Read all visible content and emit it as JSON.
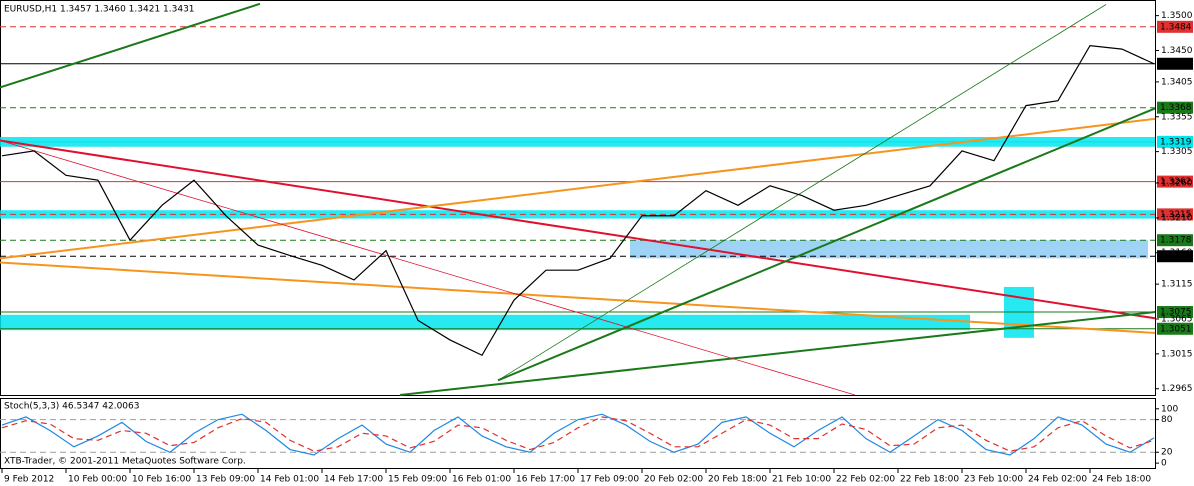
{
  "chart_data": [
    {
      "type": "line",
      "title": "EURUSD,H1  1.3457 1.3460 1.3421 1.3431",
      "x": [
        0,
        8,
        16,
        24,
        32,
        40,
        48,
        56,
        64,
        72,
        80,
        88,
        96,
        104,
        112,
        120,
        128,
        136,
        144,
        152,
        160,
        168,
        176,
        184,
        192,
        200,
        208,
        216,
        224,
        232,
        240,
        248,
        256,
        264,
        272,
        280,
        288
      ],
      "values": [
        1.3299,
        1.3306,
        1.3271,
        1.3264,
        1.3178,
        1.3228,
        1.3264,
        1.3213,
        1.3171,
        1.3156,
        1.3142,
        1.3121,
        1.3163,
        1.3063,
        1.3035,
        1.3013,
        1.3092,
        1.3135,
        1.3135,
        1.3152,
        1.3213,
        1.3213,
        1.3249,
        1.3228,
        1.3256,
        1.3242,
        1.3221,
        1.3228,
        1.3242,
        1.3256,
        1.3306,
        1.3292,
        1.3371,
        1.3378,
        1.3457,
        1.3452,
        1.3431
      ],
      "color": "#000000",
      "xlim": [
        -0.5,
        288.25
      ],
      "ylim": [
        1.2956,
        1.3521
      ],
      "yticks": [
        {
          "value": 1.35,
          "label": "1.3500"
        },
        {
          "value": 1.345,
          "label": "1.3450"
        },
        1.3405,
        1.3355,
        1.3305,
        {
          "value": 1.326,
          "label": "1.3260"
        },
        {
          "value": 1.321,
          "label": "1.3210"
        },
        {
          "value": 1.316,
          "label": "1.3160"
        },
        1.3115,
        1.3065,
        1.3015,
        1.2965
      ],
      "grid": false,
      "levels": [
        {
          "value": 1.3484,
          "color": "#e0302f",
          "style": "dash"
        },
        {
          "value": 1.3431,
          "color": "#000000",
          "style": "solid"
        },
        {
          "value": 1.3368,
          "color": "#1a7a1a",
          "style": "dash"
        },
        {
          "value": 1.3319,
          "color": "#00e5ee",
          "style": "solid"
        },
        {
          "value": 1.3262,
          "color": "#e0302f",
          "style": "solid"
        },
        {
          "value": 1.3215,
          "color": "#e0302f",
          "style": "dash"
        },
        {
          "value": 1.3178,
          "color": "#1a7a1a",
          "style": "dash"
        },
        {
          "value": 1.3155,
          "color": "#000000",
          "style": "dash"
        },
        {
          "value": 1.3075,
          "color": "#1a7a1a",
          "style": "solid"
        },
        {
          "value": 1.3051,
          "color": "#1a7a1a",
          "style": "solid"
        }
      ],
      "zones": [
        {
          "x": [
            -0.5,
            288.25
          ],
          "y": [
            1.3312,
            1.3326
          ],
          "color": "#00e5ee"
        },
        {
          "x": [
            -0.5,
            288.25
          ],
          "y": [
            1.3209,
            1.3221
          ],
          "color": "#00e5ee"
        },
        {
          "x": [
            -0.5,
            242
          ],
          "y": [
            1.3049,
            1.3071
          ],
          "color": "#00e5ee"
        },
        {
          "x": [
            157,
            286.5
          ],
          "y": [
            1.3152,
            1.3178
          ],
          "color": "#8ecbf5"
        },
        {
          "x": [
            250.5,
            258
          ],
          "y": [
            1.3038,
            1.3111
          ],
          "color": "#00e5ee"
        }
      ],
      "trendlines": [
        {
          "x": [
            -0.5,
            288.25
          ],
          "y": [
            1.3321,
            1.3066
          ],
          "color": "#e0102f",
          "width": 2
        },
        {
          "x": [
            -0.5,
            288.25
          ],
          "y": [
            1.3152,
            1.3352
          ],
          "color": "#f7941d",
          "width": 2
        },
        {
          "x": [
            -0.5,
            288.25
          ],
          "y": [
            1.3146,
            1.3045
          ],
          "color": "#f7941d",
          "width": 2
        },
        {
          "x": [
            99.5,
            288.25
          ],
          "y": [
            1.2956,
            1.3075
          ],
          "color": "#1a7a1a",
          "width": 2
        },
        {
          "x": [
            124,
            288.25
          ],
          "y": [
            1.2977,
            1.3367
          ],
          "color": "#1a7a1a",
          "width": 2
        },
        {
          "x": [
            -0.5,
            64.5
          ],
          "y": [
            1.3397,
            1.3517
          ],
          "color": "#1a7a1a",
          "width": 2
        },
        {
          "x": [
            -0.5,
            213.25
          ],
          "y": [
            1.3321,
            1.2956
          ],
          "color": "#e0102f",
          "width": 0.8
        },
        {
          "x": [
            124,
            276
          ],
          "y": [
            1.2977,
            1.3516
          ],
          "color": "#1a7a1a",
          "width": 0.8
        }
      ]
    },
    {
      "type": "line",
      "title": "Stoch(5,3,3) 46.5347 42.0063",
      "annotation": "XTB-Trader, © 2001-2011 MetaQuotes Software Corp.",
      "x": [
        0,
        6,
        12,
        18,
        24,
        30,
        36,
        42,
        48,
        54,
        60,
        66,
        72,
        78,
        84,
        90,
        96,
        102,
        108,
        114,
        120,
        126,
        132,
        138,
        144,
        150,
        156,
        162,
        168,
        174,
        180,
        186,
        192,
        198,
        204,
        210,
        216,
        222,
        228,
        234,
        240,
        246,
        252,
        258,
        264,
        270,
        276,
        282,
        288
      ],
      "series": [
        {
          "color": "#1e88e5",
          "style": "solid",
          "values": [
            70,
            85,
            60,
            30,
            50,
            75,
            40,
            20,
            55,
            80,
            90,
            60,
            25,
            15,
            45,
            70,
            35,
            20,
            60,
            85,
            50,
            30,
            20,
            55,
            80,
            90,
            70,
            40,
            20,
            35,
            75,
            85,
            55,
            30,
            60,
            85,
            45,
            20,
            50,
            80,
            60,
            25,
            15,
            45,
            85,
            70,
            35,
            20,
            46.5
          ]
        },
        {
          "color": "#e0302f",
          "style": "dash",
          "values": [
            65,
            78,
            72,
            45,
            42,
            60,
            55,
            32,
            38,
            65,
            82,
            75,
            42,
            22,
            30,
            55,
            50,
            28,
            40,
            70,
            65,
            42,
            25,
            38,
            65,
            85,
            78,
            55,
            30,
            30,
            55,
            80,
            70,
            45,
            45,
            72,
            62,
            32,
            35,
            65,
            70,
            42,
            22,
            30,
            65,
            78,
            50,
            28,
            42
          ]
        }
      ],
      "xlim": [
        -0.5,
        288.25
      ],
      "ylim": [
        -9,
        118
      ],
      "yticks": [
        100,
        80,
        20,
        0
      ],
      "levels": [
        {
          "value": 80,
          "color": "#9e9e9e",
          "style": "dash"
        },
        {
          "value": 20,
          "color": "#9e9e9e",
          "style": "dash"
        }
      ],
      "xticks": [
        {
          "value": 0,
          "label": "9 Feb 2012"
        },
        {
          "value": 16,
          "label": "10 Feb 00:00"
        },
        {
          "value": 32,
          "label": "10 Feb 16:00"
        },
        {
          "value": 48,
          "label": "13 Feb 09:00"
        },
        {
          "value": 64,
          "label": "14 Feb 01:00"
        },
        {
          "value": 80,
          "label": "14 Feb 17:00"
        },
        {
          "value": 96,
          "label": "15 Feb 09:00"
        },
        {
          "value": 112,
          "label": "16 Feb 01:00"
        },
        {
          "value": 128,
          "label": "16 Feb 17:00"
        },
        {
          "value": 144,
          "label": "17 Feb 09:00"
        },
        {
          "value": 160,
          "label": "20 Feb 02:00"
        },
        {
          "value": 176,
          "label": "20 Feb 18:00"
        },
        {
          "value": 192,
          "label": "21 Feb 10:00"
        },
        {
          "value": 208,
          "label": "22 Feb 02:00"
        },
        {
          "value": 224,
          "label": "22 Feb 18:00"
        },
        {
          "value": 240,
          "label": "23 Feb 10:00"
        },
        {
          "value": 256,
          "label": "24 Feb 02:00"
        },
        {
          "value": 272,
          "label": "24 Feb 18:00"
        }
      ]
    }
  ]
}
